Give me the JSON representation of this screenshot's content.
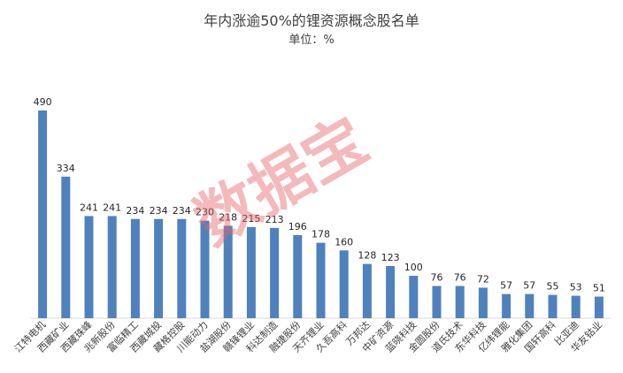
{
  "chart_data": {
    "type": "bar",
    "title": "年内涨逾50%的锂资源概念股名单",
    "subtitle": "单位：%",
    "xlabel": "",
    "ylabel": "",
    "ylim": [
      0,
      500
    ],
    "grid": false,
    "bar_color": "#4f81bd",
    "categories": [
      "江特电机",
      "西藏矿业",
      "西藏珠峰",
      "兆新股份",
      "富临精工",
      "西藏城投",
      "藏格控股",
      "川能动力",
      "盐湖股份",
      "赣锋锂业",
      "科达制造",
      "融捷股份",
      "天齐锂业",
      "久吾高科",
      "万邦达",
      "中矿资源",
      "蓝晓科技",
      "金圆股份",
      "道氏技术",
      "东华科技",
      "亿纬锂能",
      "雅化集团",
      "国轩高科",
      "比亚迪",
      "华友钴业"
    ],
    "values": [
      490,
      334,
      241,
      241,
      234,
      234,
      234,
      230,
      218,
      215,
      213,
      196,
      178,
      160,
      128,
      123,
      100,
      76,
      76,
      72,
      57,
      57,
      55,
      53,
      51
    ]
  },
  "watermark": "数据宝"
}
